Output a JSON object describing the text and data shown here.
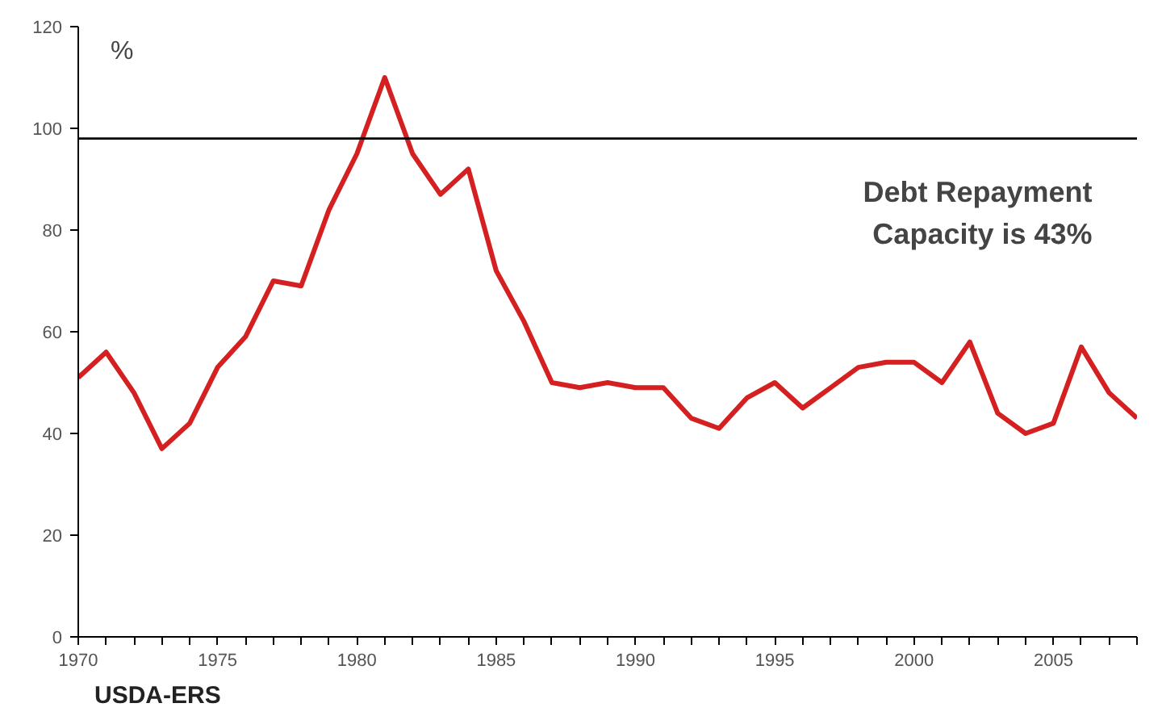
{
  "chart_data": {
    "type": "line",
    "ylabel": "%",
    "x": [
      1970,
      1971,
      1972,
      1973,
      1974,
      1975,
      1976,
      1977,
      1978,
      1979,
      1980,
      1981,
      1982,
      1983,
      1984,
      1985,
      1986,
      1987,
      1988,
      1989,
      1990,
      1991,
      1992,
      1993,
      1994,
      1995,
      1996,
      1997,
      1998,
      1999,
      2000,
      2001,
      2002,
      2003,
      2004,
      2005,
      2006,
      2007,
      2008
    ],
    "series": [
      {
        "color": "#d42020",
        "values": [
          51,
          56,
          48,
          37,
          42,
          53,
          59,
          70,
          69,
          84,
          95,
          110,
          95,
          87,
          92,
          72,
          62,
          50,
          49,
          50,
          49,
          49,
          43,
          41,
          47,
          50,
          45,
          49,
          53,
          54,
          54,
          50,
          58,
          44,
          40,
          42,
          57,
          48,
          43
        ]
      }
    ],
    "xlim": [
      1970,
      2008
    ],
    "xticks": [
      1970,
      {
        "value": 1971,
        "label": null
      },
      {
        "value": 1972,
        "label": null
      },
      {
        "value": 1973,
        "label": null
      },
      {
        "value": 1974,
        "label": null
      },
      1975,
      {
        "value": 1976,
        "label": null
      },
      {
        "value": 1977,
        "label": null
      },
      {
        "value": 1978,
        "label": null
      },
      {
        "value": 1979,
        "label": null
      },
      1980,
      {
        "value": 1981,
        "label": null
      },
      {
        "value": 1982,
        "label": null
      },
      {
        "value": 1983,
        "label": null
      },
      {
        "value": 1984,
        "label": null
      },
      1985,
      {
        "value": 1986,
        "label": null
      },
      {
        "value": 1987,
        "label": null
      },
      {
        "value": 1988,
        "label": null
      },
      {
        "value": 1989,
        "label": null
      },
      1990,
      {
        "value": 1991,
        "label": null
      },
      {
        "value": 1992,
        "label": null
      },
      {
        "value": 1993,
        "label": null
      },
      {
        "value": 1994,
        "label": null
      },
      1995,
      {
        "value": 1996,
        "label": null
      },
      {
        "value": 1997,
        "label": null
      },
      {
        "value": 1998,
        "label": null
      },
      {
        "value": 1999,
        "label": null
      },
      2000,
      {
        "value": 2001,
        "label": null
      },
      {
        "value": 2002,
        "label": null
      },
      {
        "value": 2003,
        "label": null
      },
      {
        "value": 2004,
        "label": null
      },
      2005,
      {
        "value": 2006,
        "label": null
      },
      {
        "value": 2007,
        "label": null
      },
      {
        "value": 2008,
        "label": null
      }
    ],
    "ylim": [
      0,
      120
    ],
    "yticks": [
      0,
      20,
      40,
      60,
      80,
      100,
      120
    ],
    "ref_lines": [
      {
        "axis": "y",
        "value": 98,
        "color": "#000000"
      }
    ],
    "annotations": [
      "Debt Repayment\nCapacity is 43%",
      "USDA-ERS"
    ],
    "grid": false,
    "line_style": "solid",
    "marker": "none"
  }
}
